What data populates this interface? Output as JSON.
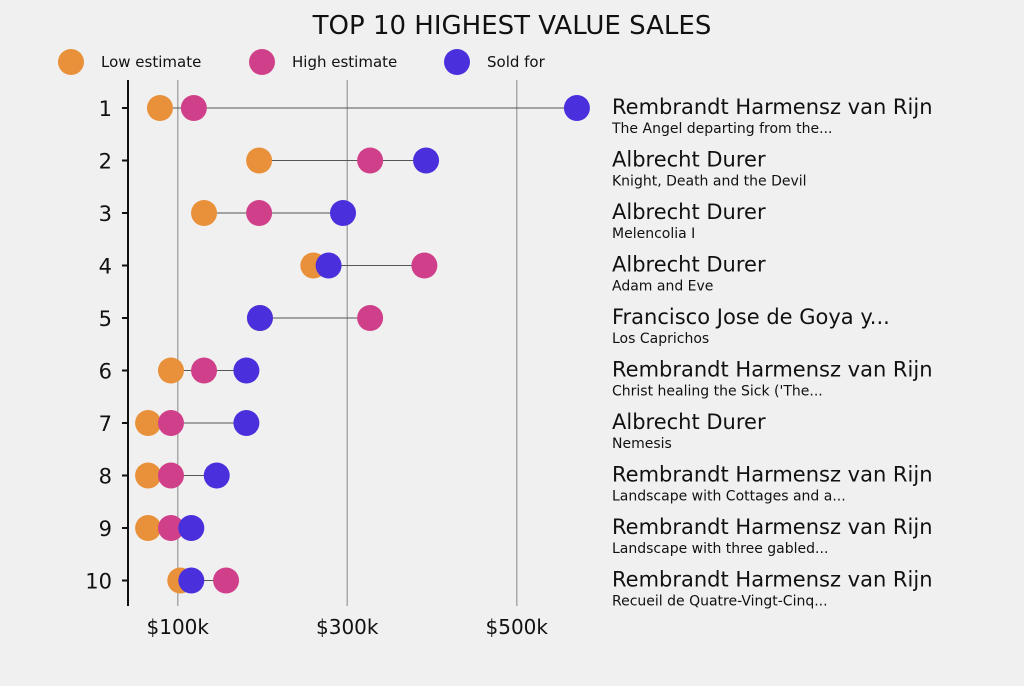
{
  "chart_data": {
    "type": "dumbbell",
    "title": "TOP 10 HIGHEST VALUE SALES",
    "legend": [
      {
        "name": "Low estimate",
        "color": "#E8913A"
      },
      {
        "name": "High estimate",
        "color": "#D0408A"
      },
      {
        "name": "Sold for",
        "color": "#4A30DD"
      }
    ],
    "legend_position": "top",
    "x_ticks": [
      {
        "value": 100,
        "label": "$100k"
      },
      {
        "value": 300,
        "label": "$300k"
      },
      {
        "value": 500,
        "label": "$500k"
      }
    ],
    "x_unit": "thousands USD",
    "grid": true,
    "rows": [
      {
        "rank": "1",
        "artist": "Rembrandt Harmensz van Rijn",
        "title": "The Angel departing from the...",
        "low": 79,
        "high": 119,
        "sold": 571
      },
      {
        "rank": "2",
        "artist": "Albrecht Durer",
        "title": "Knight, Death and the Devil",
        "low": 196,
        "high": 327,
        "sold": 393
      },
      {
        "rank": "3",
        "artist": "Albrecht Durer",
        "title": "Melencolia I",
        "low": 131,
        "high": 196,
        "sold": 295
      },
      {
        "rank": "4",
        "artist": "Albrecht Durer",
        "title": "Adam and Eve",
        "low": 260,
        "high": 391,
        "sold": 278
      },
      {
        "rank": "5",
        "artist": "Francisco Jose de Goya y...",
        "title": "Los Caprichos",
        "low": 197,
        "high": 327,
        "sold": 197
      },
      {
        "rank": "6",
        "artist": "Rembrandt Harmensz van Rijn",
        "title": "Christ healing the Sick ('The...",
        "low": 92,
        "high": 131,
        "sold": 181
      },
      {
        "rank": "7",
        "artist": "Albrecht Durer",
        "title": "Nemesis",
        "low": 65,
        "high": 92,
        "sold": 181
      },
      {
        "rank": "8",
        "artist": "Rembrandt Harmensz van Rijn",
        "title": "Landscape with Cottages and a...",
        "low": 65,
        "high": 92,
        "sold": 146
      },
      {
        "rank": "9",
        "artist": "Rembrandt Harmensz van Rijn",
        "title": "Landscape with three gabled...",
        "low": 65,
        "high": 92,
        "sold": 116
      },
      {
        "rank": "10",
        "artist": "Rembrandt Harmensz van Rijn",
        "title": "Recueil de Quatre-Vingt-Cinq...",
        "low": 103,
        "high": 157,
        "sold": 116
      }
    ]
  }
}
